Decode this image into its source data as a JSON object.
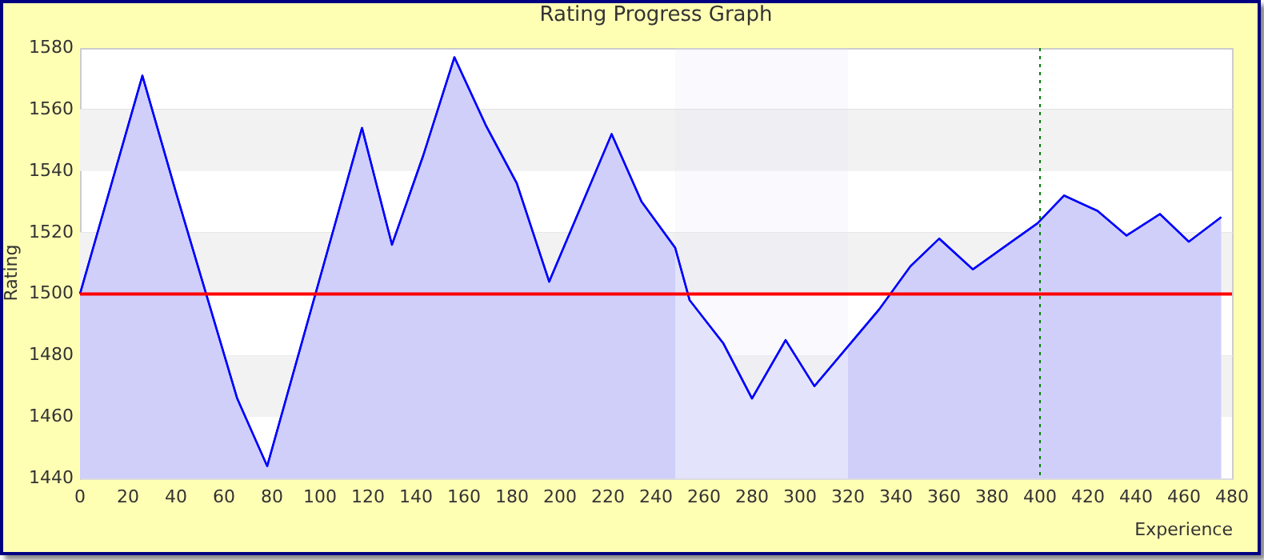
{
  "chart_data": {
    "type": "area",
    "title": "Rating Progress Graph",
    "xlabel": "Experience",
    "ylabel": "Rating",
    "series": [
      {
        "color": "#0000ff",
        "x": [
          0,
          26,
          40,
          65.5,
          78,
          117.5,
          130,
          143,
          156,
          169,
          182,
          195.5,
          221.5,
          234,
          248,
          254,
          268,
          280,
          294,
          306,
          333,
          346,
          358,
          372,
          399,
          410,
          424,
          436,
          450,
          462,
          475.5
        ],
        "values": [
          1500,
          1571,
          1533,
          1466,
          1444,
          1554,
          1516,
          1545,
          1577,
          1555,
          1536,
          1504,
          1552,
          1530,
          1515,
          1498,
          1484,
          1466,
          1485,
          1470,
          1495,
          1509,
          1518,
          1508,
          1523,
          1532,
          1527,
          1519,
          1526,
          1517,
          1525
        ]
      }
    ],
    "xlim": [
      0,
      480
    ],
    "xticks": [
      0,
      20,
      40,
      60,
      80,
      100,
      120,
      140,
      160,
      180,
      200,
      220,
      240,
      260,
      280,
      300,
      320,
      340,
      360,
      380,
      400,
      420,
      440,
      460,
      480
    ],
    "ylim": [
      1440,
      1580
    ],
    "yticks": [
      1440,
      1460,
      1480,
      1500,
      1520,
      1540,
      1560,
      1580
    ],
    "grid": "y",
    "legend": false,
    "ref_lines": [
      {
        "axis": "y",
        "value": 1500,
        "color": "#ff0000",
        "line_style": "solid"
      },
      {
        "axis": "x",
        "value": 400,
        "color": "#008000",
        "line_style": "dotted"
      }
    ],
    "bands": [
      {
        "axis": "x",
        "from": 248,
        "to": 320
      }
    ]
  }
}
